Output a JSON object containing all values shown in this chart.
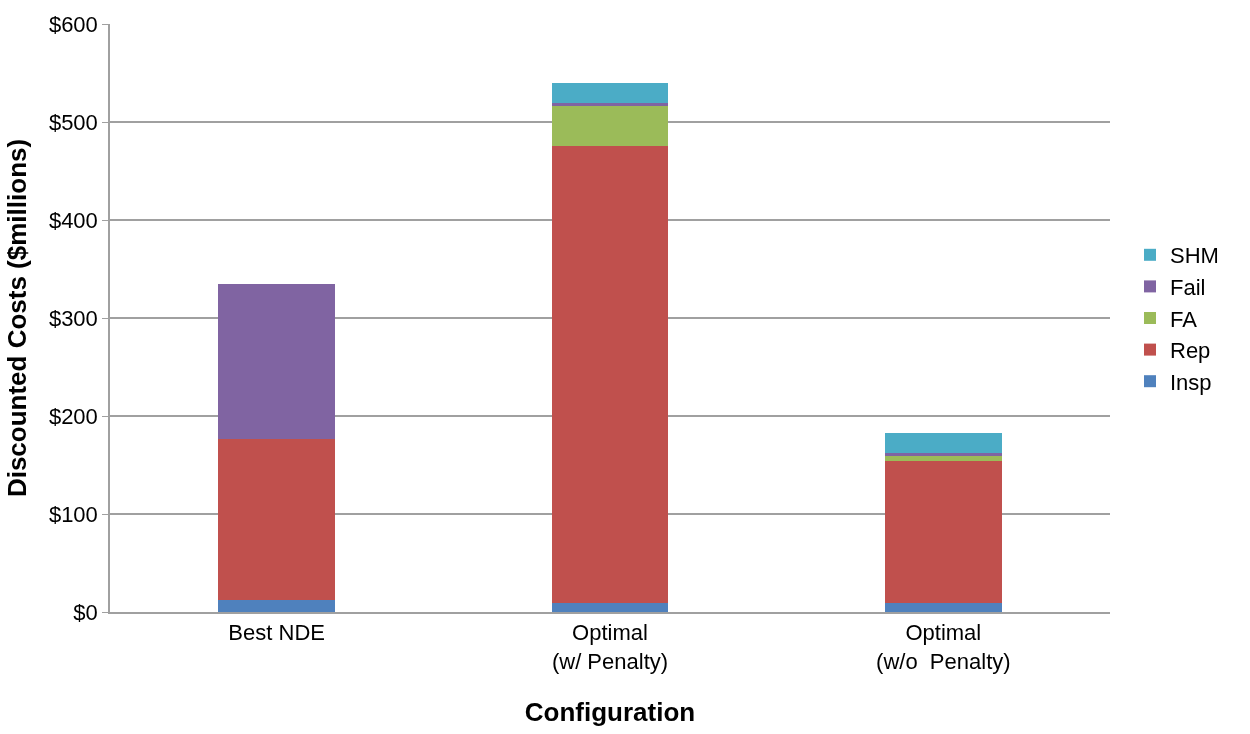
{
  "chart_data": {
    "type": "bar",
    "stacked": true,
    "xlabel": "Configuration",
    "ylabel": "Discounted Costs ($millions)",
    "categories": [
      "Best NDE",
      "Optimal\n(w/ Penalty)",
      "Optimal\n(w/o  Penalty)"
    ],
    "series": [
      {
        "name": "Insp",
        "color": "#4f81bd",
        "values": [
          12,
          9,
          9
        ]
      },
      {
        "name": "Rep",
        "color": "#c0504d",
        "values": [
          165,
          467,
          145
        ]
      },
      {
        "name": "FA",
        "color": "#9bbb59",
        "values": [
          0,
          41,
          5
        ]
      },
      {
        "name": "Fail",
        "color": "#8064a2",
        "values": [
          158,
          2,
          3
        ]
      },
      {
        "name": "SHM",
        "color": "#4bacc6",
        "values": [
          0,
          21,
          21
        ]
      }
    ],
    "ylim": [
      0,
      600
    ],
    "yticks": [
      {
        "value": 0,
        "label": "$0"
      },
      {
        "value": 100,
        "label": "$100"
      },
      {
        "value": 200,
        "label": "$200"
      },
      {
        "value": 300,
        "label": "$300"
      },
      {
        "value": 400,
        "label": "$400"
      },
      {
        "value": 500,
        "label": "$500"
      },
      {
        "value": 600,
        "label": "$600"
      }
    ],
    "grid": "y",
    "legend": "right"
  }
}
